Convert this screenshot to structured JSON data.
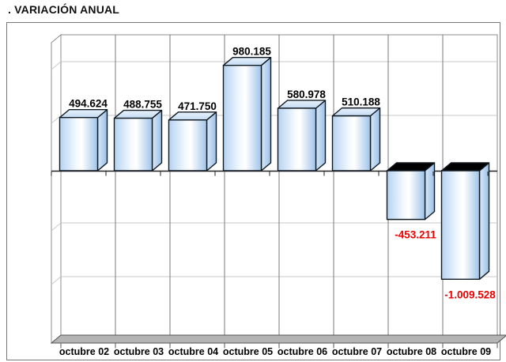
{
  "chart_data": {
    "type": "bar",
    "projection": "3d",
    "title": ". VARIACIÓN ANUAL",
    "categories": [
      "octubre 02",
      "octubre 03",
      "octubre 04",
      "octubre 05",
      "octubre 06",
      "octubre 07",
      "octubre 08",
      "octubre 09"
    ],
    "series": [
      {
        "name": "Variación anual",
        "values": [
          494624,
          488755,
          471750,
          980185,
          580978,
          510188,
          -453211,
          -1009528
        ],
        "value_labels": [
          "494.624",
          "488.755",
          "471.750",
          "980.185",
          "580.978",
          "510.188",
          "-453.211",
          "-1.009.528"
        ]
      }
    ],
    "xlabel": "",
    "ylabel": "",
    "ylim": [
      -1500000,
      1250000
    ],
    "grid_interval": 500000,
    "y_tick_labels_visible": false,
    "legend_visible": false,
    "grid": "on",
    "colors": {
      "bar_face_left": "#b5d3f1",
      "bar_face_mid": "#ffffff",
      "bar_face_right": "#9fc3e9",
      "bar_top_light": "#e8f2fb",
      "bar_top_dark": "#c3dbf3",
      "bar_side_light": "#d8e9f9",
      "bar_side_dark": "#9cc0e7",
      "bar_outline": "#101820",
      "negative_bar_top": "#000000",
      "positive_label": "#000000",
      "negative_label": "#ee0000",
      "axis_line": "#222222",
      "grid_line": "#c9c9c9",
      "floor": "#b4b4b4",
      "floor_edge": "#555555"
    }
  }
}
